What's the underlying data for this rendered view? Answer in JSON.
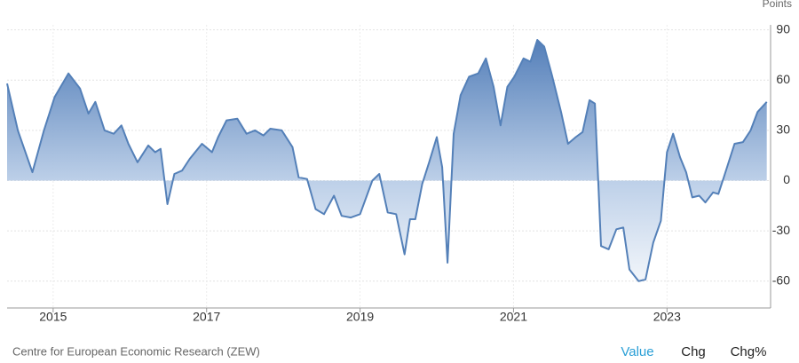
{
  "chart_data": {
    "type": "area",
    "y_axis_label": "Points",
    "color": "#5480b8",
    "x": [
      2014.4,
      2014.54,
      2014.73,
      2014.88,
      2015.02,
      2015.2,
      2015.35,
      2015.46,
      2015.55,
      2015.67,
      2015.79,
      2015.89,
      2015.98,
      2016.1,
      2016.24,
      2016.33,
      2016.4,
      2016.49,
      2016.58,
      2016.68,
      2016.78,
      2016.94,
      2017.07,
      2017.15,
      2017.26,
      2017.4,
      2017.52,
      2017.63,
      2017.74,
      2017.83,
      2017.98,
      2018.12,
      2018.2,
      2018.31,
      2018.42,
      2018.53,
      2018.66,
      2018.76,
      2018.88,
      2019.0,
      2019.16,
      2019.25,
      2019.36,
      2019.47,
      2019.58,
      2019.65,
      2019.72,
      2019.81,
      2019.9,
      2020.0,
      2020.07,
      2020.14,
      2020.22,
      2020.31,
      2020.42,
      2020.54,
      2020.64,
      2020.74,
      2020.83,
      2020.92,
      2021.01,
      2021.13,
      2021.22,
      2021.31,
      2021.4,
      2021.5,
      2021.62,
      2021.71,
      2021.81,
      2021.9,
      2021.99,
      2022.06,
      2022.14,
      2022.24,
      2022.34,
      2022.43,
      2022.51,
      2022.63,
      2022.72,
      2022.82,
      2022.92,
      2023.0,
      2023.08,
      2023.17,
      2023.25,
      2023.33,
      2023.42,
      2023.5,
      2023.6,
      2023.67,
      2023.74,
      2023.88,
      2023.99,
      2024.09,
      2024.18,
      2024.3
    ],
    "values": [
      58,
      30,
      5,
      30,
      50,
      64,
      55,
      40,
      47,
      30,
      28,
      33,
      22,
      11,
      21,
      17,
      19,
      -14,
      4,
      6,
      13,
      22,
      17,
      26,
      36,
      37,
      28,
      30,
      27,
      31,
      30,
      20,
      2,
      1,
      -17,
      -20,
      -9,
      -21,
      -22,
      -20,
      0,
      4,
      -19,
      -20,
      -44,
      -23,
      -23,
      -2,
      11,
      26,
      8,
      -49,
      28,
      51,
      62,
      64,
      73,
      56,
      33,
      56,
      62,
      73,
      71,
      84,
      80,
      63,
      41,
      22,
      26,
      29,
      48,
      46,
      -39,
      -41,
      -29,
      -28,
      -53,
      -60,
      -59,
      -37,
      -24,
      17,
      28,
      14,
      5,
      -10,
      -9,
      -13,
      -7,
      -8,
      2,
      22,
      23,
      30,
      41,
      47
    ],
    "xlim": [
      2014.4,
      2024.35
    ],
    "xticks": [
      2015,
      2017,
      2019,
      2021,
      2023
    ],
    "ylim": [
      -76,
      93
    ],
    "yticks": [
      90,
      60,
      30,
      0,
      -30,
      -60
    ],
    "grid": true
  },
  "footer": {
    "source": "Centre for European Economic Research (ZEW)",
    "tabs": [
      "Value",
      "Chg",
      "Chg%"
    ]
  }
}
